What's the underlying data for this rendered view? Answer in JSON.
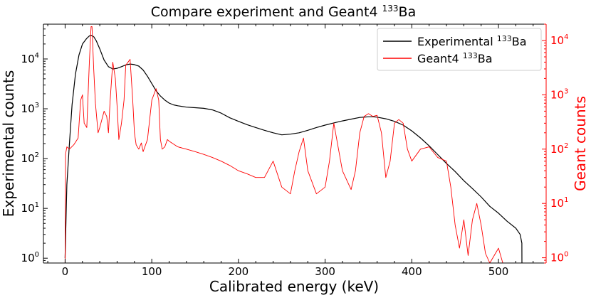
{
  "chart_data": {
    "type": "line",
    "title": "Compare experiment and Geant4 133Ba",
    "title_parts": {
      "text": "Compare experiment and Geant4 ",
      "sup": "133",
      "suffix": "Ba"
    },
    "xlabel": "Calibrated energy (keV)",
    "ylabel_left": "Experimental counts",
    "ylabel_right": "Geant counts",
    "xlim": [
      -25,
      555
    ],
    "ylim_left": [
      0.8,
      50000
    ],
    "ylim_right": [
      0.8,
      20000
    ],
    "yscale": "log",
    "x_ticks": [
      0,
      100,
      200,
      300,
      400,
      500
    ],
    "y_ticks_left": [
      {
        "base": "10",
        "exp": "0",
        "value": 1
      },
      {
        "base": "10",
        "exp": "1",
        "value": 10
      },
      {
        "base": "10",
        "exp": "2",
        "value": 100
      },
      {
        "base": "10",
        "exp": "3",
        "value": 1000
      },
      {
        "base": "10",
        "exp": "4",
        "value": 10000
      }
    ],
    "y_ticks_right": [
      {
        "base": "10",
        "exp": "0",
        "value": 1
      },
      {
        "base": "10",
        "exp": "1",
        "value": 10
      },
      {
        "base": "10",
        "exp": "2",
        "value": 100
      },
      {
        "base": "10",
        "exp": "3",
        "value": 1000
      },
      {
        "base": "10",
        "exp": "4",
        "value": 10000
      }
    ],
    "legend_position": "top-right",
    "series": [
      {
        "name": "Experimental 133Ba",
        "legend": {
          "text": "Experimental ",
          "sup": "133",
          "suffix": "Ba"
        },
        "axis": "left",
        "color": "#000000",
        "x": [
          0,
          2,
          5,
          8,
          12,
          16,
          20,
          25,
          28,
          30,
          33,
          36,
          40,
          45,
          50,
          55,
          60,
          65,
          70,
          75,
          80,
          85,
          90,
          95,
          100,
          105,
          110,
          115,
          120,
          125,
          130,
          140,
          150,
          160,
          170,
          180,
          190,
          200,
          210,
          220,
          230,
          240,
          250,
          260,
          270,
          280,
          290,
          300,
          310,
          320,
          330,
          340,
          350,
          355,
          360,
          370,
          380,
          390,
          400,
          410,
          420,
          430,
          440,
          450,
          460,
          470,
          480,
          490,
          500,
          510,
          520,
          525,
          527,
          527.1
        ],
        "y": [
          1,
          30,
          200,
          1200,
          5000,
          12000,
          20000,
          26000,
          29000,
          30000,
          28000,
          23000,
          16000,
          9500,
          7000,
          6300,
          6500,
          7000,
          7600,
          7900,
          7700,
          7200,
          6000,
          4500,
          3200,
          2300,
          1800,
          1500,
          1300,
          1200,
          1150,
          1080,
          1050,
          1020,
          950,
          820,
          660,
          560,
          480,
          420,
          370,
          330,
          300,
          310,
          330,
          370,
          420,
          470,
          520,
          570,
          620,
          670,
          690,
          690,
          680,
          630,
          560,
          470,
          360,
          260,
          180,
          120,
          80,
          55,
          36,
          25,
          17,
          11,
          8,
          5.5,
          4,
          3,
          2,
          0.8
        ]
      },
      {
        "name": "Geant4 133Ba",
        "legend": {
          "text": "Geant4 ",
          "sup": "133",
          "suffix": "Ba"
        },
        "axis": "right",
        "color": "#ff0000",
        "x": [
          0,
          0.5,
          2,
          5,
          10,
          15,
          18,
          20,
          22,
          25,
          28,
          30,
          31,
          33,
          35,
          38,
          40,
          45,
          48,
          50,
          52,
          55,
          58,
          60,
          62,
          65,
          68,
          70,
          75,
          78,
          80,
          82,
          85,
          88,
          90,
          95,
          100,
          105,
          108,
          110,
          112,
          115,
          118,
          120,
          130,
          140,
          150,
          160,
          170,
          180,
          190,
          200,
          210,
          220,
          230,
          240,
          250,
          260,
          265,
          270,
          275,
          280,
          290,
          300,
          305,
          310,
          320,
          330,
          335,
          340,
          345,
          350,
          355,
          360,
          365,
          370,
          375,
          380,
          385,
          390,
          395,
          400,
          410,
          420,
          430,
          440,
          445,
          450,
          455,
          460,
          465,
          470,
          475,
          480,
          485,
          490,
          500,
          505,
          510
        ],
        "y": [
          0.8,
          80,
          110,
          100,
          120,
          160,
          800,
          1000,
          300,
          250,
          4000,
          18000,
          18000,
          3000,
          700,
          200,
          250,
          500,
          400,
          200,
          800,
          4000,
          2000,
          600,
          150,
          300,
          800,
          3500,
          4500,
          800,
          200,
          120,
          100,
          130,
          90,
          150,
          800,
          1300,
          800,
          150,
          100,
          110,
          150,
          140,
          110,
          100,
          90,
          80,
          70,
          60,
          50,
          40,
          35,
          30,
          30,
          60,
          20,
          15,
          40,
          90,
          160,
          40,
          15,
          20,
          60,
          300,
          40,
          18,
          40,
          200,
          400,
          450,
          400,
          420,
          200,
          30,
          60,
          300,
          350,
          300,
          100,
          60,
          100,
          110,
          70,
          60,
          20,
          4,
          1.5,
          5,
          1.1,
          5,
          10,
          4,
          1.2,
          0.8,
          1.5,
          0.8,
          0.8
        ]
      }
    ]
  }
}
